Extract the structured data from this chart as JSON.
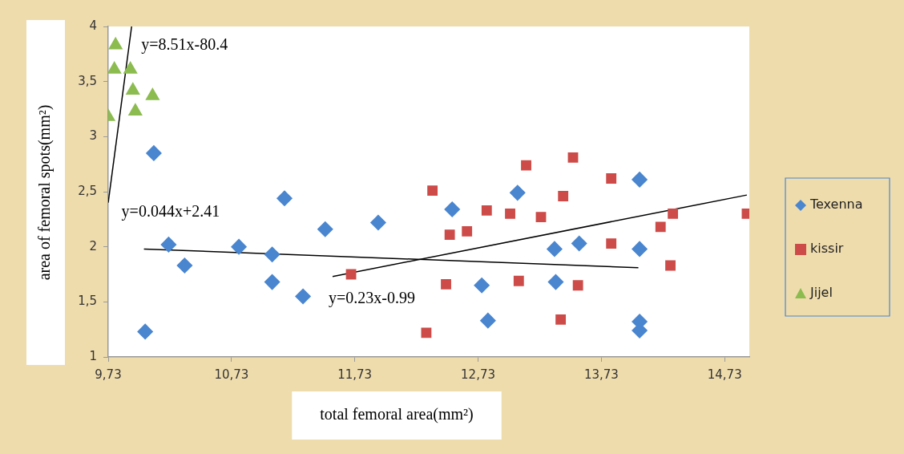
{
  "chart_data": {
    "type": "scatter",
    "xlabel": "total femoral area(mm²)",
    "ylabel": "area of femoral spots(mm²)",
    "xlim": [
      9.73,
      14.93
    ],
    "ylim": [
      1,
      4
    ],
    "xticks": [
      {
        "value": 9.73,
        "label": "9,73"
      },
      {
        "value": 10.73,
        "label": "10,73"
      },
      {
        "value": 11.73,
        "label": "11,73"
      },
      {
        "value": 12.73,
        "label": "12,73"
      },
      {
        "value": 13.73,
        "label": "13,73"
      },
      {
        "value": 14.73,
        "label": "14,73"
      }
    ],
    "yticks": [
      1,
      {
        "value": 1.5,
        "label": "1,5"
      },
      2,
      {
        "value": 2.5,
        "label": "2,5"
      },
      3,
      {
        "value": 3.5,
        "label": "3,5"
      },
      4
    ],
    "grid": false,
    "legend": "right",
    "series": [
      {
        "name": "Texenna",
        "color": "#4a86cf",
        "marker": "diamond",
        "x": [
          10.1,
          10.22,
          10.35,
          10.03,
          10.79,
          11.06,
          11.06,
          11.16,
          11.31,
          11.49,
          11.92,
          12.52,
          12.76,
          12.81,
          13.05,
          13.35,
          13.36,
          13.55,
          14.04,
          14.04,
          14.04,
          14.04
        ],
        "values": [
          2.85,
          2.02,
          1.83,
          1.23,
          2.0,
          1.93,
          1.68,
          2.44,
          1.55,
          2.16,
          2.22,
          2.34,
          1.65,
          1.33,
          2.49,
          1.98,
          1.68,
          2.03,
          2.61,
          1.98,
          1.32,
          1.24
        ]
      },
      {
        "name": "kissir",
        "color": "#cd4b48",
        "marker": "square",
        "x": [
          11.7,
          12.36,
          13.12,
          13.5,
          13.81,
          13.42,
          12.8,
          12.99,
          13.24,
          12.5,
          12.64,
          14.21,
          14.31,
          14.91,
          13.81,
          14.29,
          12.47,
          13.06,
          13.54,
          13.4,
          12.31
        ],
        "values": [
          1.75,
          2.51,
          2.74,
          2.81,
          2.62,
          2.46,
          2.33,
          2.3,
          2.27,
          2.11,
          2.14,
          2.18,
          2.3,
          2.3,
          2.03,
          1.83,
          1.66,
          1.69,
          1.65,
          1.34,
          1.22
        ]
      },
      {
        "name": "Jijel",
        "color": "#8cbc50",
        "marker": "triangle",
        "x": [
          9.79,
          9.78,
          9.91,
          9.93,
          10.09,
          9.95,
          9.73
        ],
        "values": [
          3.83,
          3.61,
          3.61,
          3.42,
          3.37,
          3.23,
          3.18
        ]
      },
      {
        "type": "line",
        "color": "#000000",
        "marker": "none",
        "x": [
          9.73,
          9.92
        ],
        "values": [
          2.4,
          4.0
        ]
      },
      {
        "type": "line",
        "color": "#000000",
        "marker": "none",
        "x": [
          10.02,
          14.03
        ],
        "values": [
          1.98,
          1.81
        ]
      },
      {
        "type": "line",
        "color": "#000000",
        "marker": "none",
        "x": [
          11.55,
          14.91
        ],
        "values": [
          1.73,
          2.47
        ]
      }
    ],
    "annotations": [
      "y=8.51x-80.4",
      "y=0.044x+2.41",
      "y=0.23x-0.99"
    ]
  }
}
